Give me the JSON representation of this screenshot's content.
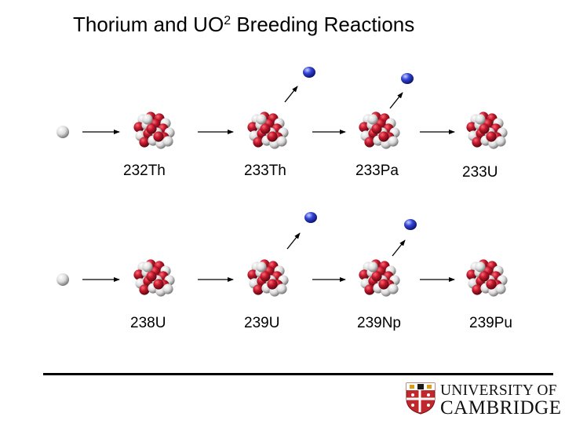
{
  "slide": {
    "title_main": "Thorium and UO",
    "title_sup": "2",
    "title_rest": " Breeding Reactions"
  },
  "row1": {
    "labels": [
      "232Th",
      "233Th",
      "233Pa",
      "233U"
    ]
  },
  "row2": {
    "labels": [
      "238U",
      "239U",
      "239Np",
      "239Pu"
    ]
  },
  "logo": {
    "line1": "UNIVERSITY OF",
    "line2": "CAMBRIDGE"
  },
  "colors": {
    "proton": "#b0162a",
    "neutron": "#e8e8e8",
    "electron": "#2f3fc4",
    "shield_red": "#c0282d"
  }
}
